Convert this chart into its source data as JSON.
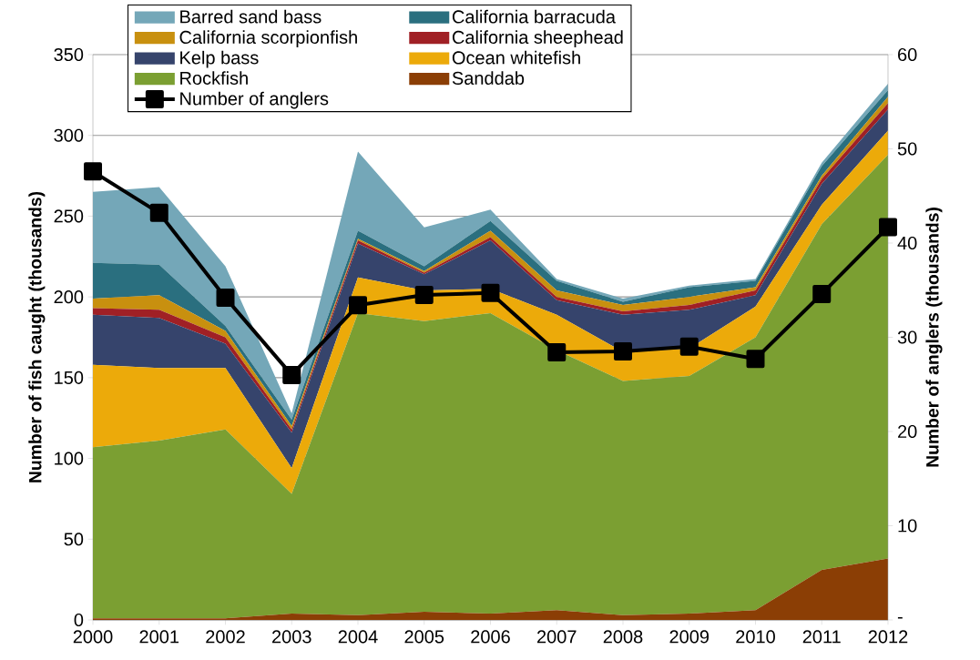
{
  "chart_data": {
    "type": "area",
    "stacked": true,
    "ylabel": "Number of fish caught (thousands)",
    "y2label": "Number of anglers (thousands)",
    "x": [
      2000,
      2001,
      2002,
      2003,
      2004,
      2005,
      2006,
      2007,
      2008,
      2009,
      2010,
      2011,
      2012
    ],
    "xlim": [
      2000,
      2012
    ],
    "xticks": [
      2000,
      2001,
      2002,
      2003,
      2004,
      2005,
      2006,
      2007,
      2008,
      2009,
      2010,
      2011,
      2012
    ],
    "ylim": [
      0,
      350
    ],
    "yticks": [
      0,
      50,
      100,
      150,
      200,
      250,
      300,
      350
    ],
    "y2lim": [
      0,
      60
    ],
    "y2ticks": [
      {
        "value": 0,
        "label": "-"
      },
      10,
      20,
      30,
      40,
      50,
      60
    ],
    "grid": "y",
    "legend": "top",
    "series": [
      {
        "name": "Sanddab",
        "color": "#8b3e05",
        "values": [
          1,
          1,
          1,
          4,
          3,
          5,
          4,
          6,
          3,
          4,
          6,
          31,
          38
        ]
      },
      {
        "name": "Rockfish",
        "color": "#7b9f32",
        "values": [
          106,
          110,
          117,
          74,
          187,
          180,
          186,
          161,
          145,
          147,
          169,
          214,
          250
        ]
      },
      {
        "name": "Ocean whitefish",
        "color": "#ecaa0a",
        "values": [
          51,
          45,
          38,
          16,
          22,
          19,
          15,
          22,
          18,
          17,
          19,
          12,
          15
        ]
      },
      {
        "name": "Kelp bass",
        "color": "#36446c",
        "values": [
          31,
          31,
          15,
          22,
          21,
          10,
          30,
          9,
          23,
          24,
          7,
          13,
          13
        ]
      },
      {
        "name": "California sheephead",
        "color": "#a02025",
        "values": [
          4,
          5,
          4,
          2,
          2,
          1,
          2,
          2,
          2,
          3,
          3,
          3,
          4
        ]
      },
      {
        "name": "California scorpionfish",
        "color": "#c8900f",
        "values": [
          6,
          9,
          4,
          2,
          1,
          1,
          4,
          4,
          4,
          5,
          2,
          2,
          4
        ]
      },
      {
        "name": "California barracuda",
        "color": "#2a6f7f",
        "values": [
          22,
          19,
          3,
          4,
          5,
          3,
          6,
          6,
          2,
          6,
          4,
          6,
          4
        ]
      },
      {
        "name": "Barred sand bass",
        "color": "#74a7b8",
        "values": [
          44,
          48,
          37,
          4,
          49,
          24,
          7,
          1,
          2,
          1,
          1,
          2,
          4
        ]
      },
      {
        "name": "Number of anglers",
        "type": "line",
        "axis": "y2",
        "color": "#000000",
        "marker": "square",
        "line_style": "solid",
        "values": [
          47.6,
          43.2,
          34.2,
          26.0,
          33.4,
          34.5,
          34.7,
          28.4,
          28.5,
          29.0,
          27.7,
          34.6,
          41.7
        ]
      }
    ]
  }
}
